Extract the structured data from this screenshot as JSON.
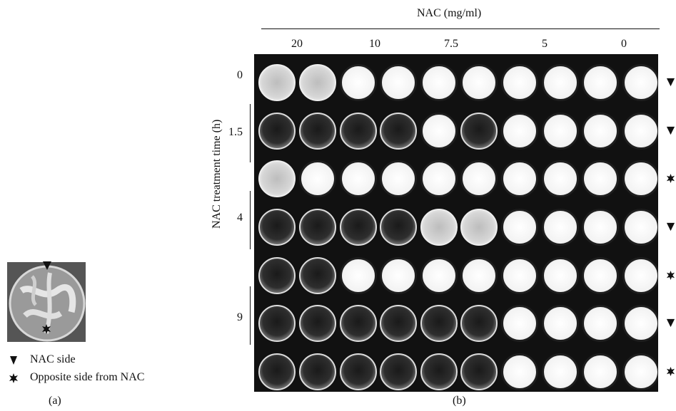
{
  "panel_a": {
    "label": "(a)",
    "legend": [
      {
        "symbol": "triangle",
        "text": "NAC side"
      },
      {
        "symbol": "star",
        "text": "Opposite side from NAC"
      }
    ]
  },
  "panel_b": {
    "label": "(b)",
    "x_title": "NAC (mg/ml)",
    "y_title": "NAC treatment time (h)",
    "concentrations": [
      "20",
      "10",
      "7.5",
      "5",
      "0"
    ],
    "times": [
      "0",
      "1.5",
      "4",
      "9"
    ],
    "rows": [
      {
        "marker": "triangle",
        "wells": [
          "clear",
          "clear",
          "white",
          "white",
          "white",
          "white",
          "white",
          "white",
          "white",
          "white"
        ]
      },
      {
        "marker": "triangle",
        "wells": [
          "dark",
          "dark",
          "dark",
          "dark",
          "white",
          "dark",
          "white",
          "white",
          "white",
          "white"
        ]
      },
      {
        "marker": "star",
        "wells": [
          "clear",
          "white",
          "white",
          "white",
          "white",
          "white",
          "white",
          "white",
          "white",
          "white"
        ]
      },
      {
        "marker": "triangle",
        "wells": [
          "dark",
          "dark",
          "dark",
          "dark",
          "clear",
          "clear",
          "white",
          "white",
          "white",
          "white"
        ]
      },
      {
        "marker": "star",
        "wells": [
          "dark",
          "dark",
          "white",
          "white",
          "white",
          "white",
          "white",
          "white",
          "white",
          "white"
        ]
      },
      {
        "marker": "triangle",
        "wells": [
          "dark",
          "dark",
          "dark",
          "dark",
          "dark",
          "dark",
          "white",
          "white",
          "white",
          "white"
        ]
      },
      {
        "marker": "star",
        "wells": [
          "dark",
          "dark",
          "dark",
          "dark",
          "dark",
          "dark",
          "white",
          "white",
          "white",
          "white"
        ]
      }
    ]
  },
  "colors": {
    "dark_well": "#2a2a2a",
    "white_well": "#f4f4f4",
    "clear_well": "#cfcfcf",
    "plate": "#111111"
  }
}
